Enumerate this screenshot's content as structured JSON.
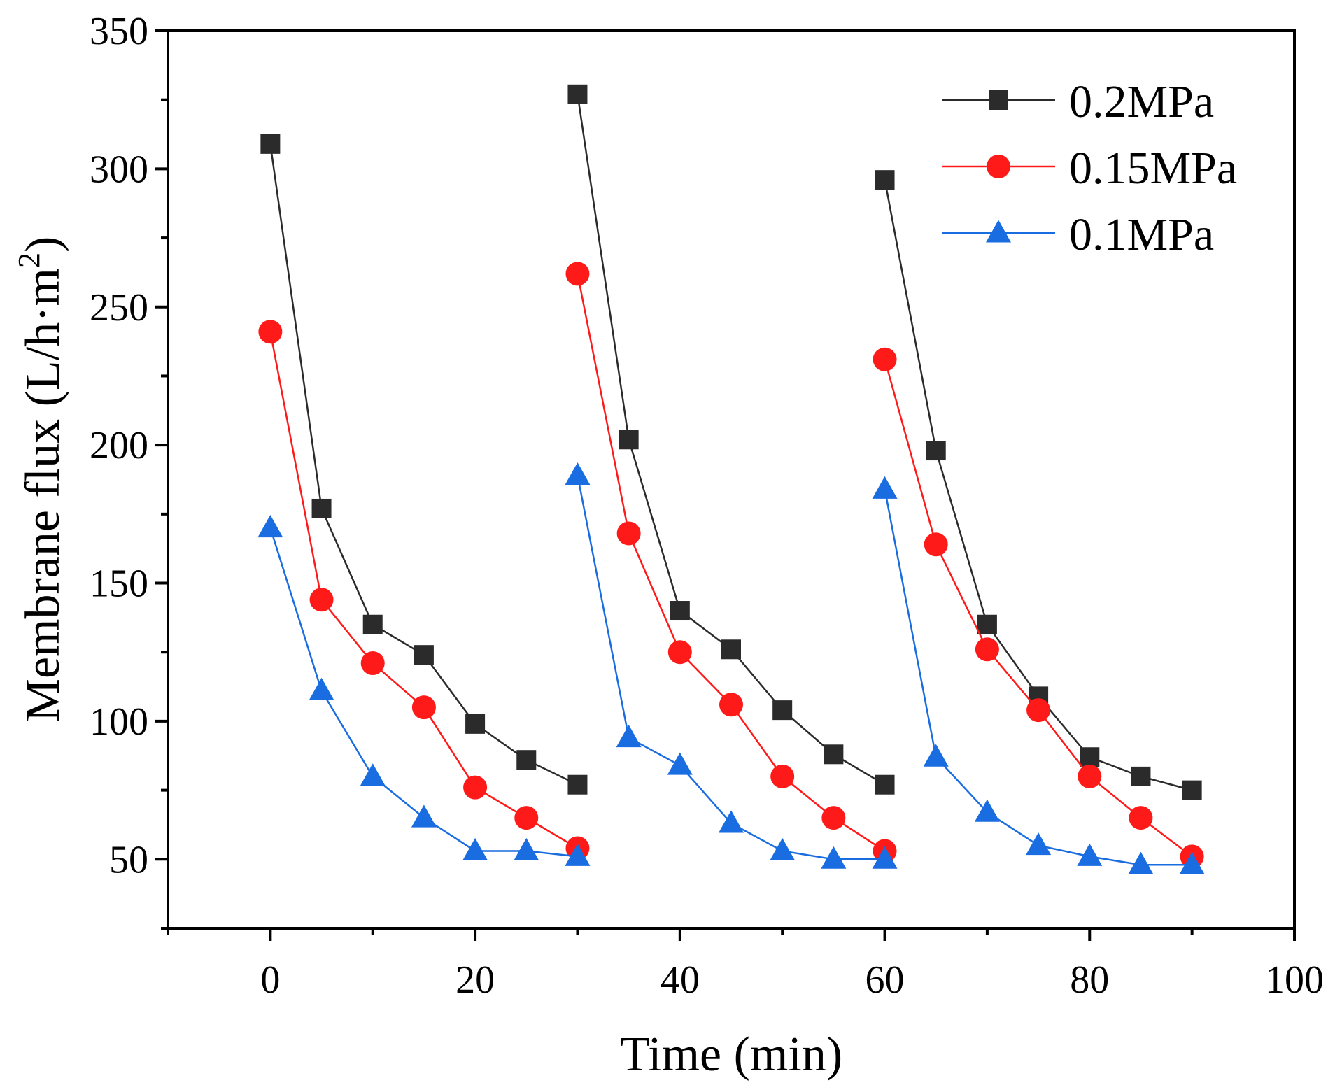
{
  "chart_data": {
    "type": "line",
    "title": "",
    "xlabel": "Time (min)",
    "ylabel": "Membrane flux (L/h·m",
    "ylabel_superscript": "2",
    "ylabel_close": ")",
    "xlim": [
      -10,
      100
    ],
    "ylim": [
      25,
      350
    ],
    "xticks": [
      0,
      20,
      40,
      60,
      80,
      100
    ],
    "xminor": [
      -10,
      10,
      30,
      50,
      70,
      90
    ],
    "yticks": [
      50,
      100,
      150,
      200,
      250,
      300,
      350
    ],
    "yminor": [
      25,
      75,
      125,
      175,
      225,
      275,
      325
    ],
    "legend_position": "top-right",
    "series": [
      {
        "name": "0.2MPa",
        "color": "#2b2b2b",
        "marker": "square",
        "segments": [
          {
            "x": [
              0,
              5,
              10,
              15,
              20,
              25,
              30
            ],
            "y": [
              309,
              177,
              135,
              124,
              99,
              86,
              77
            ]
          },
          {
            "x": [
              30,
              35,
              40,
              45,
              50,
              55,
              60
            ],
            "y": [
              327,
              202,
              140,
              126,
              104,
              88,
              77
            ]
          },
          {
            "x": [
              60,
              65,
              70,
              75,
              80,
              85,
              90
            ],
            "y": [
              296,
              198,
              135,
              109,
              87,
              80,
              75
            ]
          }
        ]
      },
      {
        "name": "0.15MPa",
        "color": "#ff1a1a",
        "marker": "circle",
        "segments": [
          {
            "x": [
              0,
              5,
              10,
              15,
              20,
              25,
              30
            ],
            "y": [
              241,
              144,
              121,
              105,
              76,
              65,
              54
            ]
          },
          {
            "x": [
              30,
              35,
              40,
              45,
              50,
              55,
              60
            ],
            "y": [
              262,
              168,
              125,
              106,
              80,
              65,
              53
            ]
          },
          {
            "x": [
              60,
              65,
              70,
              75,
              80,
              85,
              90
            ],
            "y": [
              231,
              164,
              126,
              104,
              80,
              65,
              51
            ]
          }
        ]
      },
      {
        "name": "0.1MPa",
        "color": "#1a6de0",
        "marker": "triangle",
        "segments": [
          {
            "x": [
              0,
              5,
              10,
              15,
              20,
              25,
              30
            ],
            "y": [
              170,
              111,
              80,
              65,
              53,
              53,
              51
            ]
          },
          {
            "x": [
              30,
              35,
              40,
              45,
              50,
              55,
              60
            ],
            "y": [
              189,
              94,
              84,
              63,
              53,
              50,
              50
            ]
          },
          {
            "x": [
              60,
              65,
              70,
              75,
              80,
              85,
              90
            ],
            "y": [
              184,
              87,
              67,
              55,
              51,
              48,
              48
            ]
          }
        ]
      }
    ]
  }
}
